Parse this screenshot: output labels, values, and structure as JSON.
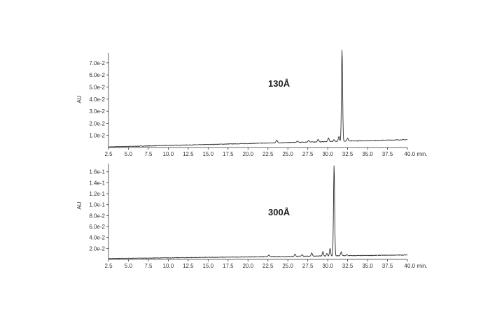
{
  "chart_data": [
    {
      "type": "line",
      "panel_label": "130Å",
      "ylabel": "AU",
      "xlabel": "",
      "x_unit": "min.",
      "xlim": [
        2.5,
        40.0
      ],
      "ylim": [
        0,
        0.078
      ],
      "x_ticks": [
        "2.5",
        "5.0",
        "7.5",
        "10.0",
        "12.5",
        "15.0",
        "17.5",
        "20.0",
        "22.5",
        "25.0",
        "27.5",
        "30.0",
        "32.5",
        "35.0",
        "37.5",
        "40.0"
      ],
      "y_ticks": [
        "1.0e-2",
        "2.0e-2",
        "3.0e-2",
        "4.0e-2",
        "5.0e-2",
        "6.0e-2",
        "7.0e-2"
      ],
      "y_tick_values": [
        0.01,
        0.02,
        0.03,
        0.04,
        0.05,
        0.06,
        0.07
      ],
      "series": [
        {
          "baseline": [
            [
              2.5,
              0.0005
            ],
            [
              40.0,
              0.0065
            ]
          ],
          "peaks": [
            [
              23.6,
              0.0025,
              0.08
            ],
            [
              26.2,
              0.001,
              0.08
            ],
            [
              27.6,
              0.0015,
              0.08
            ],
            [
              28.8,
              0.002,
              0.08
            ],
            [
              30.1,
              0.003,
              0.08
            ],
            [
              30.8,
              0.0015,
              0.08
            ],
            [
              31.4,
              0.004,
              0.07
            ],
            [
              31.8,
              0.076,
              0.07
            ],
            [
              32.5,
              0.0025,
              0.08
            ]
          ]
        }
      ]
    },
    {
      "type": "line",
      "panel_label": "300Å",
      "ylabel": "AU",
      "xlabel": "",
      "x_unit": "min.",
      "xlim": [
        2.5,
        40.0
      ],
      "ylim": [
        0,
        0.175
      ],
      "x_ticks": [
        "2.5",
        "5.0",
        "7.5",
        "10.0",
        "12.5",
        "15.0",
        "17.5",
        "20.0",
        "22.5",
        "25.0",
        "27.5",
        "30.0",
        "32.5",
        "35.0",
        "37.5",
        "40.0"
      ],
      "y_ticks": [
        "2.0e-2",
        "4.0e-2",
        "6.0e-2",
        "8.0e-2",
        "1.0e-1",
        "1.2e-1",
        "1.4e-1",
        "1.6e-1"
      ],
      "y_tick_values": [
        0.02,
        0.04,
        0.06,
        0.08,
        0.1,
        0.12,
        0.14,
        0.16
      ],
      "series": [
        {
          "baseline": [
            [
              2.5,
              0.0015
            ],
            [
              40.0,
              0.008
            ]
          ],
          "peaks": [
            [
              22.6,
              0.003,
              0.08
            ],
            [
              25.9,
              0.004,
              0.08
            ],
            [
              26.8,
              0.003,
              0.08
            ],
            [
              28.0,
              0.006,
              0.08
            ],
            [
              29.4,
              0.008,
              0.07
            ],
            [
              29.9,
              0.005,
              0.07
            ],
            [
              30.3,
              0.014,
              0.07
            ],
            [
              30.8,
              0.166,
              0.07
            ],
            [
              31.7,
              0.007,
              0.08
            ],
            [
              32.4,
              0.002,
              0.08
            ]
          ]
        }
      ]
    }
  ]
}
